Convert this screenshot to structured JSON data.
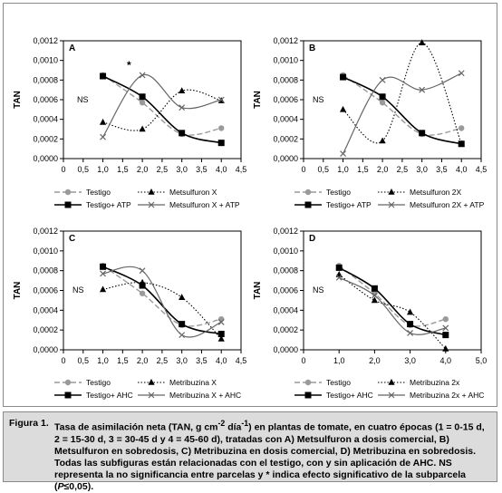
{
  "colors": {
    "testigo": "#9a9a9a",
    "dotted_series": "#000000",
    "solid_series": "#000000",
    "cross_series": "#666666",
    "caption_bg": "#dcdcdc"
  },
  "caption": {
    "label": "Figura 1.",
    "text_a": "Tasa de asimilación neta (TAN, g cm",
    "sup_a": "-2",
    "text_b": " día",
    "sup_b": "-1",
    "text_c": ") en plantas de tomate, en cuatro épocas (1 = 0-15 d, 2 = 15-30 d, 3 = 30-45 d y 4 = 45-60 d), tratadas con A) Metsulfuron a dosis comercial, B) Metsulfuron en sobredosis, C) Metribuzina en dosis comercial, D) Metribuzina en sobredosis. Todas las subfiguras están relacionadas con el testigo, con y sin aplicación de AHC. NS representa la no significancia entre parcelas y * indica efecto significativo de la subparcela (",
    "italic": "P",
    "text_d": "≤0,05)."
  },
  "chart_data": [
    {
      "panel": "A",
      "type": "line",
      "ylabel": "TAN",
      "xlim": [
        0,
        4.5
      ],
      "ylim": [
        0,
        0.0012
      ],
      "xticks": [
        "0",
        "0,5",
        "1,0",
        "1,5",
        "2,0",
        "2,5",
        "3,0",
        "3,5",
        "4,0",
        "4,5"
      ],
      "yticks": [
        "0,0000",
        "0,0002",
        "0,0004",
        "0,0006",
        "0,0008",
        "0,0010",
        "0,0012"
      ],
      "annotations": [
        {
          "text": "NS"
        },
        {
          "text": "*"
        }
      ],
      "series": [
        {
          "name": "Testigo",
          "style": "dashed",
          "marker": "circle",
          "x": [
            1,
            2,
            3,
            4
          ],
          "values": [
            0.00085,
            0.00057,
            0.00025,
            0.00031
          ]
        },
        {
          "name": "Metsulfuron X",
          "style": "dotted",
          "marker": "triangle",
          "x": [
            1,
            2,
            3,
            4
          ],
          "values": [
            0.00037,
            0.0003,
            0.00069,
            0.00059
          ]
        },
        {
          "name": "Testigo+ ATP",
          "style": "solid",
          "marker": "square",
          "x": [
            1,
            2,
            3,
            4
          ],
          "values": [
            0.00084,
            0.00063,
            0.00026,
            0.00016
          ]
        },
        {
          "name": "Metsulfuron X + ATP",
          "style": "solid-gray",
          "marker": "x",
          "x": [
            1,
            2,
            3,
            4
          ],
          "values": [
            0.00022,
            0.00085,
            0.00052,
            0.0006
          ]
        }
      ]
    },
    {
      "panel": "B",
      "type": "line",
      "ylabel": "TAN",
      "xlim": [
        0,
        4.5
      ],
      "ylim": [
        0,
        0.0012
      ],
      "xticks": [
        "0",
        "0,5",
        "1,0",
        "1,5",
        "2,0",
        "2,5",
        "3,0",
        "3,5",
        "4,0",
        "4,5"
      ],
      "yticks": [
        "0,0000",
        "0,0002",
        "0,0004",
        "0,0006",
        "0,0008",
        "0,0010",
        "0,0012"
      ],
      "annotations": [
        {
          "text": "NS"
        }
      ],
      "series": [
        {
          "name": "Testigo",
          "style": "dashed",
          "marker": "circle",
          "x": [
            1,
            2,
            3,
            4
          ],
          "values": [
            0.00085,
            0.00057,
            0.00025,
            0.00031
          ]
        },
        {
          "name": "Metsulfuron 2X",
          "style": "dotted",
          "marker": "triangle",
          "x": [
            1,
            2,
            3,
            4
          ],
          "values": [
            0.0005,
            0.00018,
            0.00118,
            0.00015
          ]
        },
        {
          "name": "Testigo+ ATP",
          "style": "solid",
          "marker": "square",
          "x": [
            1,
            2,
            3,
            4
          ],
          "values": [
            0.00083,
            0.00063,
            0.00026,
            0.00015
          ]
        },
        {
          "name": "Metsulfuron 2X + ATP",
          "style": "solid-gray",
          "marker": "x",
          "x": [
            1,
            2,
            3,
            4
          ],
          "values": [
            5e-05,
            0.0008,
            0.0007,
            0.00087
          ]
        }
      ]
    },
    {
      "panel": "C",
      "type": "line",
      "ylabel": "TAN",
      "xlim": [
        0,
        4.5
      ],
      "ylim": [
        0,
        0.0012
      ],
      "xticks": [
        "0",
        "0,5",
        "1,0",
        "1,5",
        "2,0",
        "2,5",
        "3,0",
        "3,5",
        "4,0",
        "4,5"
      ],
      "yticks": [
        "0,0000",
        "0,0002",
        "0,0004",
        "0,0006",
        "0,0008",
        "0,0010",
        "0,0012"
      ],
      "annotations": [
        {
          "text": "NS"
        }
      ],
      "series": [
        {
          "name": "Testigo",
          "style": "dashed",
          "marker": "circle",
          "x": [
            1,
            2,
            3,
            4
          ],
          "values": [
            0.00085,
            0.00057,
            0.00025,
            0.00031
          ]
        },
        {
          "name": "Metribuzina X",
          "style": "dotted",
          "marker": "triangle",
          "x": [
            1,
            2,
            3,
            4
          ],
          "values": [
            0.00061,
            0.00068,
            0.00053,
            0.00011
          ]
        },
        {
          "name": "Testigo+ AHC",
          "style": "solid",
          "marker": "square",
          "x": [
            1,
            2,
            3,
            4
          ],
          "values": [
            0.00084,
            0.00065,
            0.00026,
            0.00016
          ]
        },
        {
          "name": "Metribuzina X + AHC",
          "style": "solid-gray",
          "marker": "x",
          "x": [
            1,
            2,
            3,
            4
          ],
          "values": [
            0.00077,
            0.0008,
            0.00015,
            0.00028
          ]
        }
      ]
    },
    {
      "panel": "D",
      "type": "line",
      "ylabel": "TAN",
      "xlim": [
        0,
        5
      ],
      "ylim": [
        0,
        0.0012
      ],
      "xticks": [
        "0",
        "1,0",
        "2,0",
        "3,0",
        "4,0",
        "5,0"
      ],
      "yticks": [
        "0,0000",
        "0,0002",
        "0,0004",
        "0,0006",
        "0,0008",
        "0,0010",
        "0,0012"
      ],
      "annotations": [
        {
          "text": "NS"
        }
      ],
      "series": [
        {
          "name": "Testigo",
          "style": "dashed",
          "marker": "circle",
          "x": [
            1,
            2,
            3,
            4
          ],
          "values": [
            0.00085,
            0.00057,
            0.00025,
            0.00031
          ]
        },
        {
          "name": "Metribuzina 2x",
          "style": "dotted",
          "marker": "triangle",
          "x": [
            1,
            2,
            3,
            4
          ],
          "values": [
            0.00076,
            0.0005,
            0.00038,
            1e-05
          ]
        },
        {
          "name": "Testigo+ AHC",
          "style": "solid",
          "marker": "square",
          "x": [
            1,
            2,
            3,
            4
          ],
          "values": [
            0.00083,
            0.00062,
            0.00026,
            0.00015
          ]
        },
        {
          "name": "Metribuzina 2x + AHC",
          "style": "solid-gray",
          "marker": "x",
          "x": [
            1,
            2,
            3,
            4
          ],
          "values": [
            0.00073,
            0.00055,
            0.00017,
            0.00022
          ]
        }
      ]
    }
  ]
}
